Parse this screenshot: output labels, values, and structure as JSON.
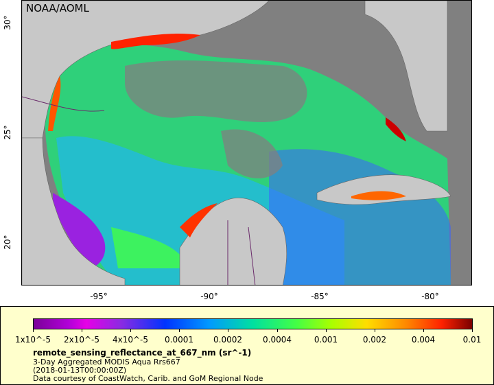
{
  "map": {
    "watermark": "NOAA/AOML",
    "x_ticks": [
      "-95°",
      "-90°",
      "-85°",
      "-80°"
    ],
    "y_ticks": [
      "30°",
      "25°",
      "20°"
    ]
  },
  "legend": {
    "colorbar_ticks": [
      "1x10^-5",
      "2x10^-5",
      "4x10^-5",
      "0.0001",
      "0.0002",
      "0.0004",
      "0.001",
      "0.002",
      "0.004",
      "0.01"
    ],
    "variable_title": "remote_sensing_reflectance_at_667_nm (sr^-1)",
    "dataset": "3-Day Aggregated MODIS Aqua Rrs667",
    "time": "(2018-01-13T00:00:00Z)",
    "credit": "Data courtesy of CoastWatch, Carib. and GoM Regional Node"
  }
}
